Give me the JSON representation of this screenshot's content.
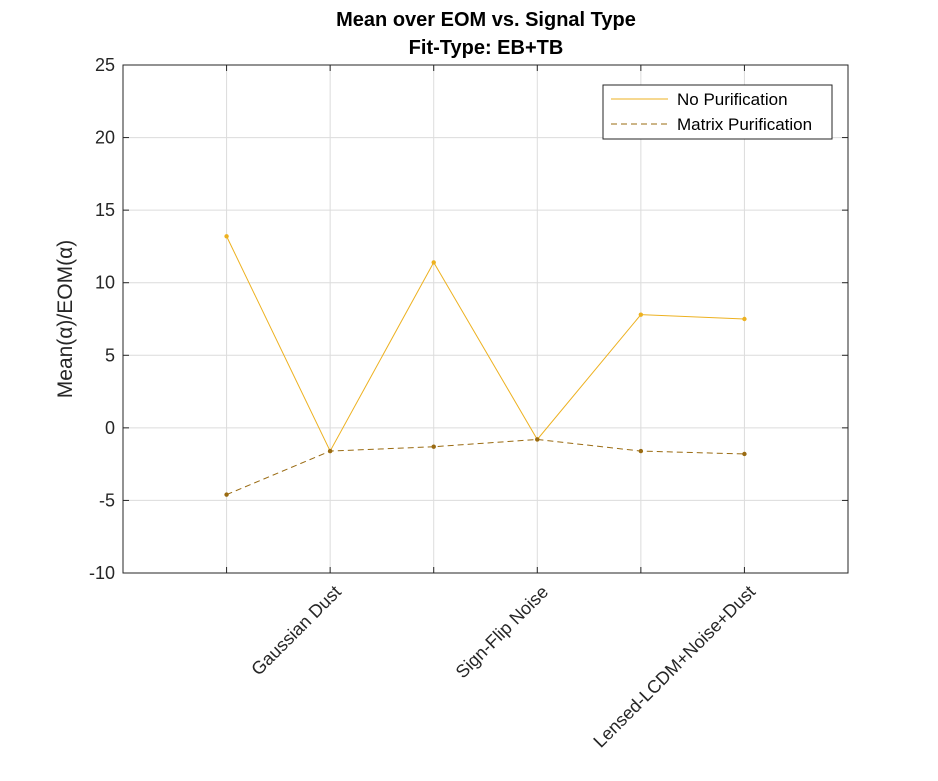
{
  "chart_data": {
    "type": "line",
    "title": "Mean over EOM vs. Signal Type",
    "subtitle": "Fit-Type: EB+TB",
    "xlabel": "",
    "ylabel": "Mean(α)/EOM(α)",
    "ylim": [
      -10,
      25
    ],
    "yticks": [
      -10,
      -5,
      0,
      5,
      10,
      15,
      20,
      25
    ],
    "xlim": [
      0,
      7
    ],
    "x": [
      1,
      2,
      3,
      4,
      5,
      6
    ],
    "xtick_labels": [
      "Gaussian Dust",
      "Sign-Flip Noise",
      "Lensed-LCDM+Noise+Dust"
    ],
    "xtick_label_positions": [
      2,
      4,
      6
    ],
    "grid": true,
    "legend_position": "top-right",
    "series": [
      {
        "name": "No Purification",
        "style": "solid",
        "color": "#EDB120",
        "values": [
          13.2,
          -1.6,
          11.4,
          -0.8,
          7.8,
          7.5
        ]
      },
      {
        "name": "Matrix Purification",
        "style": "dashed",
        "color": "#9A6B12",
        "values": [
          -4.6,
          -1.6,
          -1.3,
          -0.8,
          -1.6,
          -1.8
        ]
      }
    ]
  }
}
